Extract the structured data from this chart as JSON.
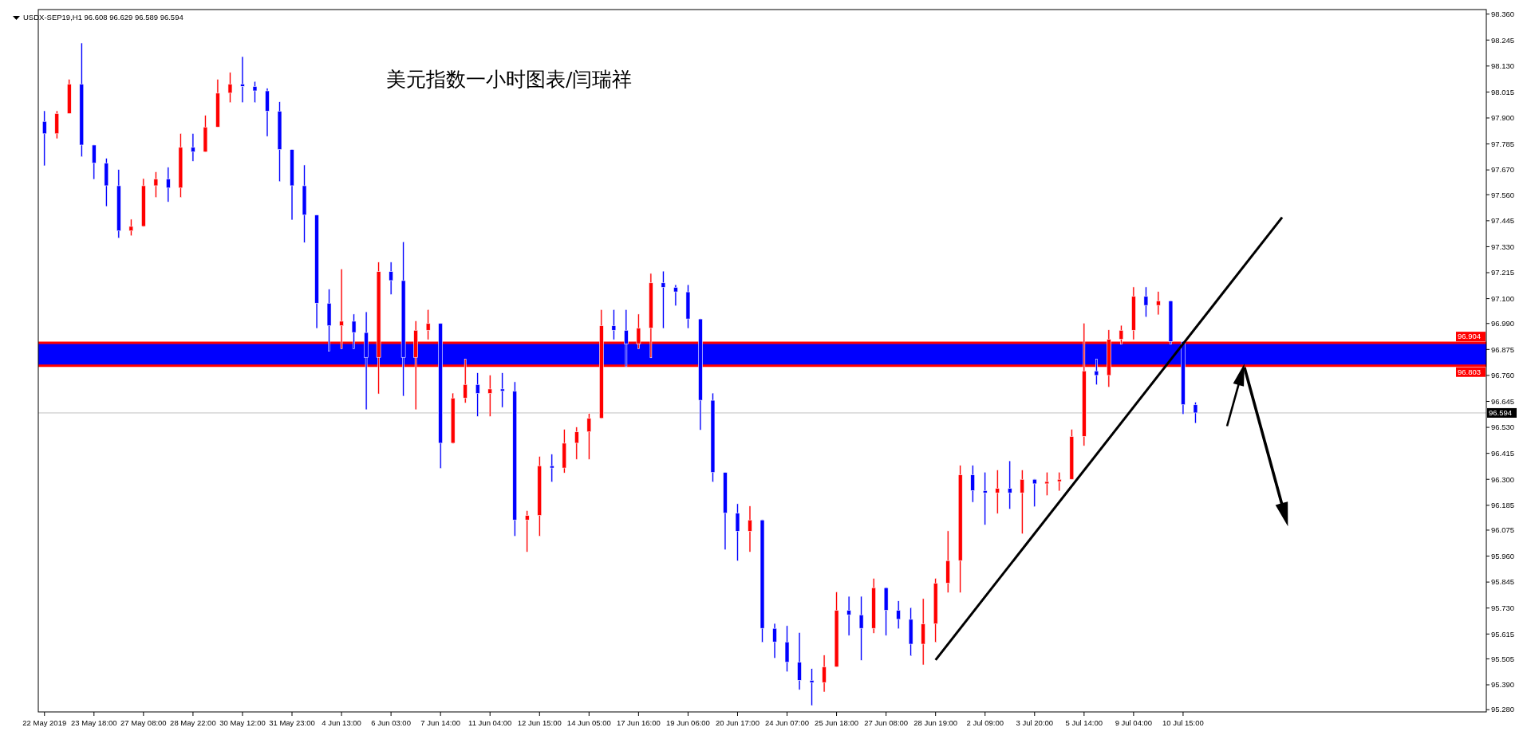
{
  "chart_data": {
    "type": "candlestick",
    "title": "美元指数一小时图表/闫瑞祥",
    "subtitle": "USDX-SEP19,H1  96.608 96.629 96.589 96.594",
    "categories": [
      "22 May 2019",
      null,
      null,
      null,
      "23 May 18:00",
      null,
      null,
      null,
      "27 May 08:00",
      null,
      null,
      null,
      "28 May 22:00",
      null,
      null,
      null,
      "30 May 12:00",
      null,
      null,
      null,
      "31 May 23:00",
      null,
      null,
      null,
      "4 Jun 13:00",
      null,
      null,
      null,
      "6 Jun 03:00",
      null,
      null,
      null,
      "7 Jun 14:00",
      null,
      null,
      null,
      "11 Jun 04:00",
      null,
      null,
      null,
      "12 Jun 15:00",
      null,
      null,
      null,
      "14 Jun 05:00",
      null,
      null,
      null,
      "17 Jun 16:00",
      null,
      null,
      null,
      "19 Jun 06:00",
      null,
      null,
      null,
      "20 Jun 17:00",
      null,
      null,
      null,
      "24 Jun 07:00",
      null,
      null,
      null,
      "25 Jun 18:00",
      null,
      null,
      null,
      "27 Jun 08:00",
      null,
      null,
      null,
      "28 Jun 19:00",
      null,
      null,
      null,
      "2 Jul 09:00",
      null,
      null,
      null,
      "3 Jul 20:00",
      null,
      null,
      null,
      "5 Jul 14:00",
      null,
      null,
      null,
      "9 Jul 04:00",
      null,
      null,
      null,
      "10 Jul 15:00",
      null,
      null,
      null,
      null,
      null,
      null,
      null,
      null,
      null,
      null,
      null,
      null,
      null,
      null,
      null,
      null,
      null,
      null,
      null,
      null,
      null,
      null,
      null,
      null
    ],
    "ohlc": [
      [
        97.885,
        97.93,
        97.69,
        97.83
      ],
      [
        97.83,
        97.93,
        97.81,
        97.92
      ],
      [
        97.92,
        98.07,
        97.92,
        98.05
      ],
      [
        98.05,
        98.23,
        97.73,
        97.78
      ],
      [
        97.78,
        97.78,
        97.63,
        97.7
      ],
      [
        97.7,
        97.72,
        97.51,
        97.6
      ],
      [
        97.6,
        97.67,
        97.37,
        97.4
      ],
      [
        97.4,
        97.45,
        97.38,
        97.42
      ],
      [
        97.42,
        97.63,
        97.42,
        97.6
      ],
      [
        97.6,
        97.66,
        97.55,
        97.63
      ],
      [
        97.63,
        97.68,
        97.53,
        97.59
      ],
      [
        97.59,
        97.83,
        97.55,
        97.77
      ],
      [
        97.77,
        97.83,
        97.71,
        97.75
      ],
      [
        97.75,
        97.91,
        97.75,
        97.86
      ],
      [
        97.86,
        98.07,
        97.86,
        98.01
      ],
      [
        98.01,
        98.1,
        97.97,
        98.05
      ],
      [
        98.05,
        98.17,
        97.97,
        98.04
      ],
      [
        98.04,
        98.06,
        97.97,
        98.02
      ],
      [
        98.02,
        98.03,
        97.82,
        97.93
      ],
      [
        97.93,
        97.97,
        97.62,
        97.76
      ],
      [
        97.76,
        97.76,
        97.45,
        97.6
      ],
      [
        97.6,
        97.69,
        97.35,
        97.47
      ],
      [
        97.47,
        97.47,
        96.97,
        97.08
      ],
      [
        97.08,
        97.14,
        96.87,
        96.98
      ],
      [
        96.98,
        97.23,
        96.88,
        97.0
      ],
      [
        97.0,
        97.03,
        96.88,
        96.95
      ],
      [
        96.95,
        97.04,
        96.61,
        96.84
      ],
      [
        96.84,
        97.26,
        96.68,
        97.22
      ],
      [
        97.22,
        97.26,
        97.12,
        97.18
      ],
      [
        97.18,
        97.35,
        96.67,
        96.84
      ],
      [
        96.84,
        97.0,
        96.61,
        96.96
      ],
      [
        96.96,
        97.05,
        96.92,
        96.99
      ],
      [
        96.99,
        96.99,
        96.35,
        96.46
      ],
      [
        96.46,
        96.68,
        96.46,
        96.66
      ],
      [
        96.66,
        96.83,
        96.64,
        96.72
      ],
      [
        96.72,
        96.77,
        96.58,
        96.68
      ],
      [
        96.68,
        96.76,
        96.58,
        96.7
      ],
      [
        96.7,
        96.77,
        96.62,
        96.69
      ],
      [
        96.69,
        96.73,
        96.05,
        96.12
      ],
      [
        96.12,
        96.16,
        95.98,
        96.14
      ],
      [
        96.14,
        96.4,
        96.05,
        96.36
      ],
      [
        96.36,
        96.41,
        96.29,
        96.35
      ],
      [
        96.35,
        96.52,
        96.33,
        96.46
      ],
      [
        96.46,
        96.53,
        96.39,
        96.51
      ],
      [
        96.51,
        96.59,
        96.39,
        96.57
      ],
      [
        96.57,
        97.05,
        96.57,
        96.98
      ],
      [
        96.98,
        97.05,
        96.92,
        96.96
      ],
      [
        96.96,
        97.05,
        96.8,
        96.9
      ],
      [
        96.9,
        97.03,
        96.88,
        96.97
      ],
      [
        96.97,
        97.21,
        96.84,
        97.17
      ],
      [
        97.17,
        97.22,
        96.97,
        97.15
      ],
      [
        97.15,
        97.16,
        97.07,
        97.13
      ],
      [
        97.13,
        97.16,
        96.97,
        97.01
      ],
      [
        97.01,
        97.01,
        96.52,
        96.65
      ],
      [
        96.65,
        96.68,
        96.29,
        96.33
      ],
      [
        96.33,
        96.33,
        95.99,
        96.15
      ],
      [
        96.15,
        96.19,
        95.94,
        96.07
      ],
      [
        96.07,
        96.18,
        95.98,
        96.12
      ],
      [
        96.12,
        96.12,
        95.58,
        95.64
      ],
      [
        95.64,
        95.66,
        95.51,
        95.58
      ],
      [
        95.58,
        95.65,
        95.45,
        95.49
      ],
      [
        95.49,
        95.62,
        95.37,
        95.41
      ],
      [
        95.41,
        95.46,
        95.3,
        95.4
      ],
      [
        95.4,
        95.52,
        95.36,
        95.47
      ],
      [
        95.47,
        95.8,
        95.47,
        95.72
      ],
      [
        95.72,
        95.78,
        95.61,
        95.7
      ],
      [
        95.7,
        95.78,
        95.5,
        95.64
      ],
      [
        95.64,
        95.86,
        95.62,
        95.82
      ],
      [
        95.82,
        95.82,
        95.61,
        95.72
      ],
      [
        95.72,
        95.76,
        95.64,
        95.68
      ],
      [
        95.68,
        95.73,
        95.52,
        95.57
      ],
      [
        95.57,
        95.77,
        95.48,
        95.66
      ],
      [
        95.66,
        95.86,
        95.58,
        95.84
      ],
      [
        95.84,
        96.07,
        95.8,
        95.94
      ],
      [
        95.94,
        96.36,
        95.8,
        96.32
      ],
      [
        96.32,
        96.36,
        96.2,
        96.25
      ],
      [
        96.25,
        96.33,
        96.1,
        96.24
      ],
      [
        96.24,
        96.34,
        96.15,
        96.26
      ],
      [
        96.26,
        96.38,
        96.17,
        96.24
      ],
      [
        96.24,
        96.34,
        96.06,
        96.3
      ],
      [
        96.3,
        96.3,
        96.18,
        96.28
      ],
      [
        96.28,
        96.33,
        96.23,
        96.29
      ],
      [
        96.29,
        96.33,
        96.25,
        96.3
      ],
      [
        96.3,
        96.52,
        96.3,
        96.49
      ],
      [
        96.49,
        96.99,
        96.45,
        96.78
      ],
      [
        96.78,
        96.83,
        96.72,
        96.76
      ],
      [
        96.76,
        96.96,
        96.71,
        96.92
      ],
      [
        96.92,
        96.98,
        96.9,
        96.96
      ],
      [
        96.96,
        97.15,
        96.92,
        97.11
      ],
      [
        97.11,
        97.15,
        97.02,
        97.07
      ],
      [
        97.07,
        97.13,
        97.03,
        97.09
      ],
      [
        97.09,
        97.09,
        96.9,
        96.91
      ],
      [
        96.91,
        96.91,
        96.59,
        96.63
      ],
      [
        96.63,
        96.64,
        96.55,
        96.594
      ],
      null,
      null,
      null,
      null,
      null,
      null,
      null,
      null,
      null,
      null,
      null,
      null,
      null,
      null,
      null,
      null,
      null,
      null,
      null,
      null,
      null,
      null,
      null
    ],
    "colors": [
      "#0000ff",
      "#ff0000",
      "#ff0000",
      "#0000ff",
      "#0000ff",
      "#0000ff",
      "#0000ff",
      "#ff0000",
      "#ff0000",
      "#ff0000",
      "#0000ff",
      "#ff0000",
      "#0000ff",
      "#ff0000",
      "#ff0000",
      "#ff0000",
      "#0000ff",
      "#0000ff",
      "#0000ff",
      "#0000ff",
      "#0000ff",
      "#0000ff",
      "#0000ff",
      "#0000ff",
      "#ff0000",
      "#0000ff",
      "#0000ff",
      "#ff0000",
      "#0000ff",
      "#0000ff",
      "#ff0000",
      "#ff0000",
      "#0000ff",
      "#ff0000",
      "#ff0000",
      "#0000ff",
      "#ff0000",
      "#0000ff",
      "#0000ff",
      "#ff0000",
      "#ff0000",
      "#0000ff",
      "#ff0000",
      "#ff0000",
      "#ff0000",
      "#ff0000",
      "#0000ff",
      "#0000ff",
      "#ff0000",
      "#ff0000",
      "#0000ff",
      "#0000ff",
      "#0000ff",
      "#0000ff",
      "#0000ff",
      "#0000ff",
      "#0000ff",
      "#ff0000",
      "#0000ff",
      "#0000ff",
      "#0000ff",
      "#0000ff",
      "#0000ff",
      "#ff0000",
      "#ff0000",
      "#0000ff",
      "#0000ff",
      "#ff0000",
      "#0000ff",
      "#0000ff",
      "#0000ff",
      "#ff0000",
      "#ff0000",
      "#ff0000",
      "#ff0000",
      "#0000ff",
      "#0000ff",
      "#ff0000",
      "#0000ff",
      "#ff0000",
      "#0000ff",
      "#ff0000",
      "#ff0000",
      "#ff0000",
      "#ff0000",
      "#0000ff",
      "#ff0000",
      "#ff0000",
      "#ff0000",
      "#0000ff",
      "#ff0000",
      "#0000ff",
      "#0000ff",
      "#0000ff",
      null,
      null,
      null,
      null,
      null,
      null,
      null,
      null,
      null,
      null,
      null,
      null,
      null,
      null,
      null,
      null,
      null,
      null,
      null,
      null,
      null,
      null,
      null
    ],
    "series": [
      {
        "type": "line",
        "color": "#000000",
        "values": [
          null,
          null,
          null,
          null,
          null,
          null,
          null,
          null,
          null,
          null,
          null,
          null,
          null,
          null,
          null,
          null,
          null,
          null,
          null,
          null,
          null,
          null,
          null,
          null,
          null,
          null,
          null,
          null,
          null,
          null,
          null,
          null,
          null,
          null,
          null,
          null,
          null,
          null,
          null,
          null,
          null,
          null,
          null,
          null,
          null,
          null,
          null,
          null,
          null,
          null,
          null,
          null,
          null,
          null,
          null,
          null,
          null,
          null,
          null,
          null,
          null,
          null,
          null,
          null,
          null,
          null,
          null,
          null,
          null,
          null,
          null,
          null,
          95.5,
          null,
          null,
          null,
          null,
          null,
          null,
          null,
          null,
          null,
          null,
          null,
          null,
          null,
          null,
          null,
          null,
          null,
          null,
          null,
          null,
          null,
          null,
          null,
          null,
          null,
          null,
          null,
          97.46,
          null,
          null,
          null,
          null,
          null,
          null,
          null,
          null,
          null,
          null,
          null,
          null,
          null,
          null,
          null,
          null
        ]
      }
    ],
    "ylim": [
      95.27,
      98.38
    ],
    "yticks": [
      {
        "value": 95.28,
        "label": "95.280"
      },
      {
        "value": 95.39,
        "label": "95.390"
      },
      {
        "value": 95.505,
        "label": "95.505"
      },
      {
        "value": 95.615,
        "label": "95.615"
      },
      {
        "value": 95.73,
        "label": "95.730"
      },
      {
        "value": 95.845,
        "label": "95.845"
      },
      {
        "value": 95.96,
        "label": "95.960"
      },
      {
        "value": 96.075,
        "label": "96.075"
      },
      {
        "value": 96.185,
        "label": "96.185"
      },
      {
        "value": 96.3,
        "label": "96.300"
      },
      {
        "value": 96.415,
        "label": "96.415"
      },
      {
        "value": 96.53,
        "label": "96.530"
      },
      {
        "value": 96.645,
        "label": "96.645"
      },
      {
        "value": 96.76,
        "label": "96.760"
      },
      {
        "value": 96.875,
        "label": "96.875"
      },
      {
        "value": 96.99,
        "label": "96.990"
      },
      {
        "value": 97.1,
        "label": "97.100"
      },
      {
        "value": 97.215,
        "label": "97.215"
      },
      {
        "value": 97.33,
        "label": "97.330"
      },
      {
        "value": 97.445,
        "label": "97.445"
      },
      {
        "value": 97.56,
        "label": "97.560"
      },
      {
        "value": 97.67,
        "label": "97.670"
      },
      {
        "value": 97.785,
        "label": "97.785"
      },
      {
        "value": 97.9,
        "label": "97.900"
      },
      {
        "value": 98.015,
        "label": "98.015"
      },
      {
        "value": 98.13,
        "label": "98.130"
      },
      {
        "value": 98.245,
        "label": "98.245"
      },
      {
        "value": 98.36,
        "label": "98.360"
      }
    ],
    "bands": [
      {
        "axis": "y",
        "from": 96.803,
        "to": 96.904,
        "color": "#0000ff"
      }
    ],
    "ref_lines": [
      {
        "axis": "y",
        "value": 96.904,
        "label": "96.904",
        "color": "#ff0000"
      },
      {
        "axis": "y",
        "value": 96.803,
        "label": "96.803",
        "color": "#ff0000"
      },
      {
        "axis": "y",
        "value": 96.594,
        "label": "96.594",
        "color": "#c0c0c0"
      }
    ]
  }
}
